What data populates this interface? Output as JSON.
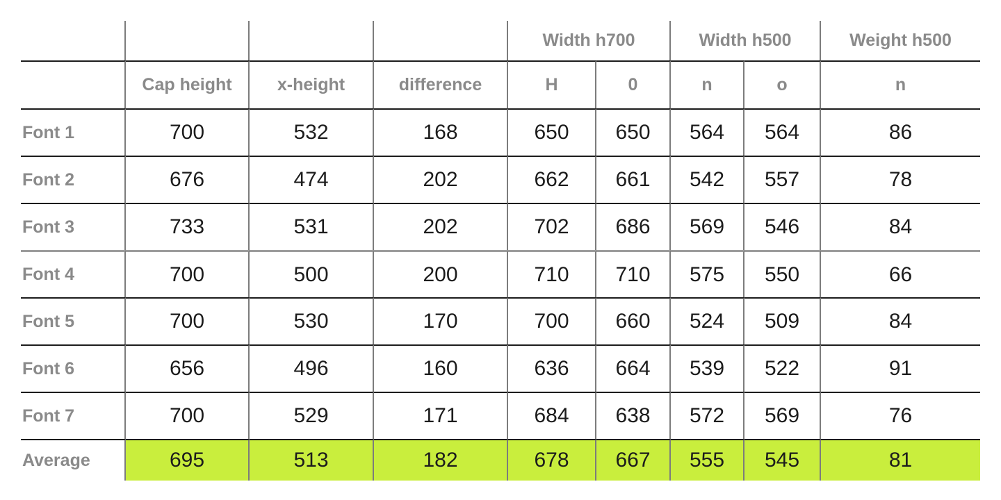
{
  "colors": {
    "highlight": "#c9ee3d",
    "header_text": "#8a8a8a",
    "value_text": "#1c1c1c",
    "grid_vertical": "#7c7c7c",
    "grid_horizontal": "#1c1c1c",
    "grid_horizontal_special": "#9c9c9c",
    "background": "#ffffff"
  },
  "table": {
    "group_headers": [
      {
        "label": "",
        "span": 1
      },
      {
        "label": "",
        "span": 1
      },
      {
        "label": "",
        "span": 1
      },
      {
        "label": "",
        "span": 1
      },
      {
        "label": "Width h700",
        "span": 2
      },
      {
        "label": "Width h500",
        "span": 2
      },
      {
        "label": "Weight h500",
        "span": 1
      }
    ],
    "column_headers": [
      "",
      "Cap height",
      "x-height",
      "difference",
      "H",
      "0",
      "n",
      "o",
      "n"
    ],
    "rows": [
      {
        "label": "Font 1",
        "values": [
          "700",
          "532",
          "168",
          "650",
          "650",
          "564",
          "564",
          "86"
        ]
      },
      {
        "label": "Font 2",
        "values": [
          "676",
          "474",
          "202",
          "662",
          "661",
          "542",
          "557",
          "78"
        ]
      },
      {
        "label": "Font 3",
        "values": [
          "733",
          "531",
          "202",
          "702",
          "686",
          "569",
          "546",
          "84"
        ]
      },
      {
        "label": "Font 4",
        "values": [
          "700",
          "500",
          "200",
          "710",
          "710",
          "575",
          "550",
          "66"
        ],
        "top_rule": "gray"
      },
      {
        "label": "Font 5",
        "values": [
          "700",
          "530",
          "170",
          "700",
          "660",
          "524",
          "509",
          "84"
        ]
      },
      {
        "label": "Font 6",
        "values": [
          "656",
          "496",
          "160",
          "636",
          "664",
          "539",
          "522",
          "91"
        ]
      },
      {
        "label": "Font 7",
        "values": [
          "700",
          "529",
          "171",
          "684",
          "638",
          "572",
          "569",
          "76"
        ]
      }
    ],
    "average_row": {
      "label": "Average",
      "values": [
        "695",
        "513",
        "182",
        "678",
        "667",
        "555",
        "545",
        "81"
      ],
      "highlight": true
    }
  },
  "chart_data": {
    "type": "table",
    "title": "",
    "group_columns": [
      {
        "label": "Width h700",
        "columns": [
          "H",
          "0"
        ]
      },
      {
        "label": "Width h500",
        "columns": [
          "n",
          "o"
        ]
      },
      {
        "label": "Weight h500",
        "columns": [
          "n"
        ]
      }
    ],
    "columns": [
      "Cap height",
      "x-height",
      "difference",
      "H",
      "0",
      "n",
      "o",
      "n"
    ],
    "row_labels": [
      "Font 1",
      "Font 2",
      "Font 3",
      "Font 4",
      "Font 5",
      "Font 6",
      "Font 7",
      "Average"
    ],
    "values": [
      [
        700,
        532,
        168,
        650,
        650,
        564,
        564,
        86
      ],
      [
        676,
        474,
        202,
        662,
        661,
        542,
        557,
        78
      ],
      [
        733,
        531,
        202,
        702,
        686,
        569,
        546,
        84
      ],
      [
        700,
        500,
        200,
        710,
        710,
        575,
        550,
        66
      ],
      [
        700,
        530,
        170,
        700,
        660,
        524,
        509,
        84
      ],
      [
        656,
        496,
        160,
        636,
        664,
        539,
        522,
        91
      ],
      [
        700,
        529,
        171,
        684,
        638,
        572,
        569,
        76
      ],
      [
        695,
        513,
        182,
        678,
        667,
        555,
        545,
        81
      ]
    ],
    "highlighted_row": "Average",
    "highlight_color": "#c9ee3d"
  }
}
